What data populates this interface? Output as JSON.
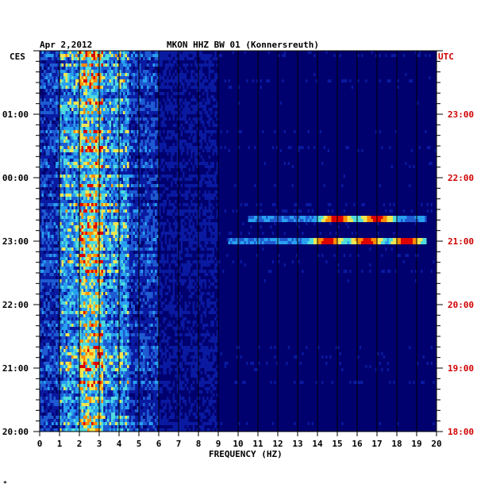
{
  "header": {
    "date": "Apr 2,2012",
    "station": "MKON HHZ BW 01 (Konnersreuth)"
  },
  "left_axis": {
    "label": "CES",
    "ticks": [
      "01:00",
      "00:00",
      "23:00",
      "22:00",
      "21:00",
      "20:00"
    ]
  },
  "right_axis": {
    "label": "UTC",
    "ticks": [
      "23:00",
      "22:00",
      "21:00",
      "20:00",
      "19:00",
      "18:00"
    ]
  },
  "footer": {
    "mark": "*"
  },
  "chart_data": {
    "type": "heatmap",
    "title": "MKON HHZ BW 01 (Konnersreuth)",
    "date": "Apr 2,2012",
    "xlabel": "FREQUENCY (HZ)",
    "xlim": [
      0,
      20
    ],
    "x_ticks": [
      "0",
      "1",
      "2",
      "3",
      "4",
      "5",
      "6",
      "7",
      "8",
      "9",
      "10",
      "11",
      "12",
      "13",
      "14",
      "15",
      "16",
      "17",
      "18",
      "19",
      "20"
    ],
    "left_timezone": "CES",
    "right_timezone": "UTC",
    "time_ticks_ces": [
      "01:00",
      "00:00",
      "23:00",
      "22:00",
      "21:00",
      "20:00"
    ],
    "time_ticks_utc": [
      "23:00",
      "22:00",
      "21:00",
      "20:00",
      "19:00",
      "18:00"
    ],
    "grid": true,
    "background_color": "#0a1aa0",
    "colormap": [
      "#00006e",
      "#0a1aa0",
      "#1e5ad2",
      "#28a0f0",
      "#50dcdc",
      "#f0e650",
      "#ff8c00",
      "#dc0000"
    ],
    "energy_band_hz": [
      1,
      4.5
    ],
    "peak_band_hz": [
      2,
      3.2
    ],
    "events": [
      {
        "time_utc": "21:00",
        "freq_range_hz": [
          9.5,
          19.5
        ],
        "peaks_hz": [
          14.5,
          16.5,
          18.5
        ]
      },
      {
        "time_utc": "21:20",
        "freq_range_hz": [
          10.5,
          19.5
        ],
        "peaks_hz": [
          17,
          15
        ]
      }
    ],
    "label_color_utc": "#d00000"
  }
}
